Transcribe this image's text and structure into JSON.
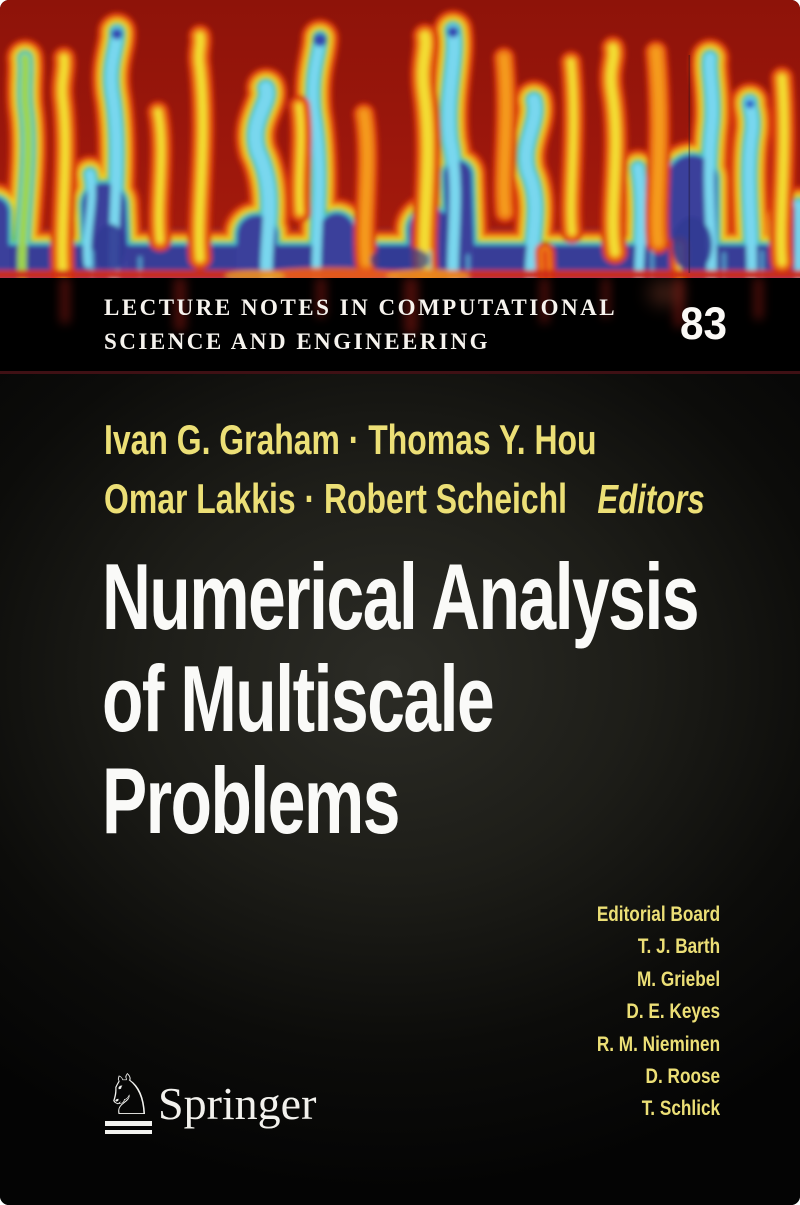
{
  "series": {
    "line1": "LECTURE NOTES IN COMPUTATIONAL",
    "line2": "SCIENCE AND ENGINEERING",
    "volume": "83"
  },
  "editors": {
    "line1": "Ivan G. Graham · Thomas Y. Hou",
    "line2": "Omar Lakkis · Robert Scheichl",
    "role": "Editors"
  },
  "title": {
    "lines": [
      "Numerical Analysis",
      "of Multiscale",
      "Problems"
    ]
  },
  "editorial_board": {
    "heading": "Editorial Board",
    "members": [
      "T. J. Barth",
      "M. Griebel",
      "D. E. Keyes",
      "R. M. Nieminen",
      "D. Roose",
      "T. Schlick"
    ]
  },
  "publisher": {
    "name": "Springer",
    "logo_glyph": "♘"
  },
  "artwork": {
    "icon": "thermal-plume-simulation-image"
  },
  "colors": {
    "banner_red": "#c1262a",
    "accent_gold": "#ecdf76",
    "title_white": "#fafaf8",
    "art_background_red": "#9b150c",
    "art_blue": "#3b3e99"
  }
}
